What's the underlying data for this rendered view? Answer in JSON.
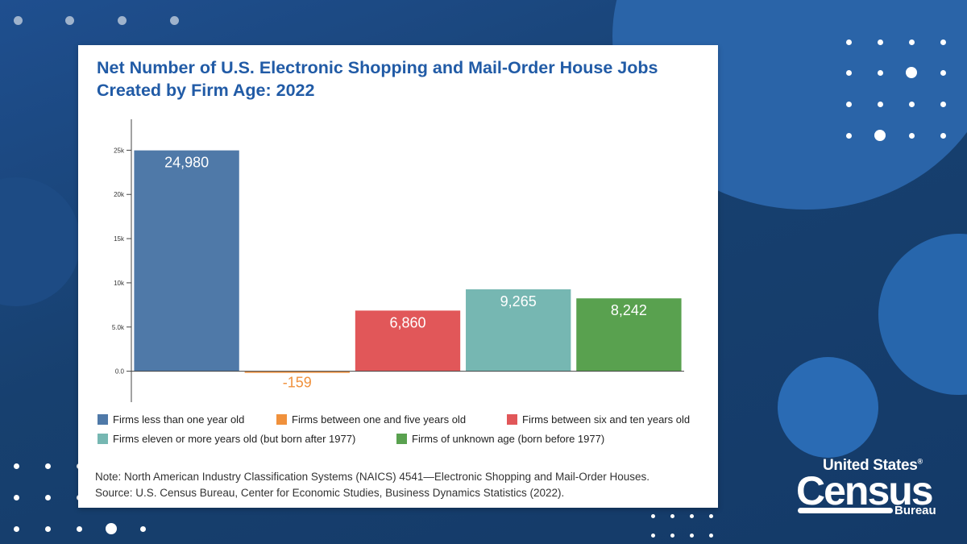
{
  "chart_data": {
    "type": "bar",
    "title": "Net Number of U.S. Electronic Shopping and Mail-Order House Jobs Created by Firm Age: 2022",
    "categories": [
      "Firms less than one year old",
      "Firms between one and five years old",
      "Firms between six and ten years old",
      "Firms eleven or more years old (but born after 1977)",
      "Firms of unknown age (born before 1977)"
    ],
    "values": [
      24980,
      -159,
      6860,
      9265,
      8242
    ],
    "data_labels": [
      "24,980",
      "-159",
      "6,860",
      "9,265",
      "8,242"
    ],
    "colors": [
      "#4f79a8",
      "#f0913c",
      "#e15759",
      "#76b7b2",
      "#59a14f"
    ],
    "label_colors": [
      "#ffffff",
      "#f0913c",
      "#ffffff",
      "#ffffff",
      "#ffffff"
    ],
    "yticks": [
      0,
      5000,
      10000,
      15000,
      20000,
      25000
    ],
    "ytick_labels": [
      "0.0",
      "5.0k",
      "10k",
      "15k",
      "20k",
      "25k"
    ],
    "ylim": [
      -3500,
      28500
    ],
    "xlabel": "",
    "ylabel": "",
    "legend_position": "bottom"
  },
  "note": {
    "line1": "Note: North American Industry Classification Systems (NAICS) 4541—Electronic Shopping and Mail-Order Houses.",
    "line2": "Source: U.S. Census Bureau, Center for Economic Studies, Business Dynamics Statistics (2022)."
  },
  "logo": {
    "line1": "United States",
    "registered": "®",
    "line2": "Census",
    "line3": "Bureau"
  }
}
